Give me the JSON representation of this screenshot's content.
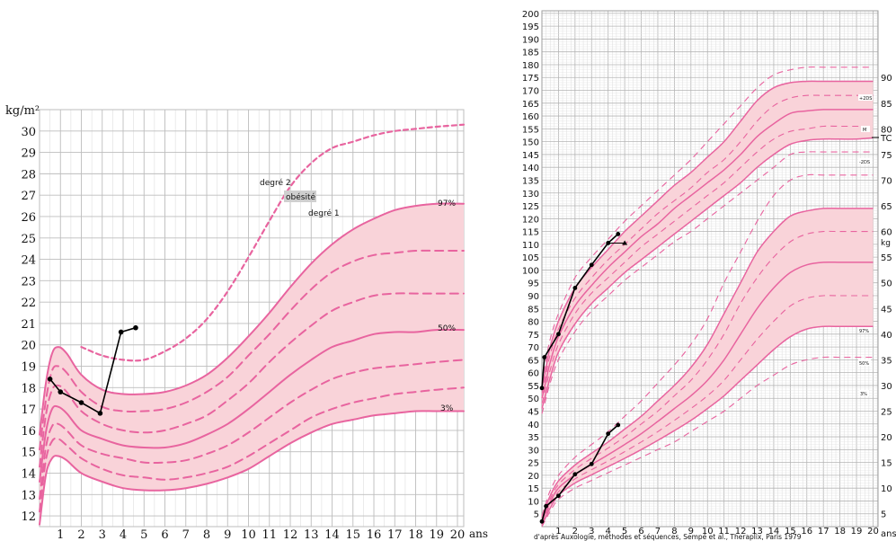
{
  "colors": {
    "pink": "#e8649f",
    "band": "#f9d3d9",
    "grid": "#c8c8c8",
    "line": "#000000"
  },
  "chart_data": [
    {
      "type": "line",
      "ylabel": "kg/m²",
      "xlabel": "ans",
      "xlim": [
        0,
        20.3
      ],
      "ylim": [
        11.5,
        31
      ],
      "x_ticks": [
        1,
        2,
        3,
        4,
        5,
        6,
        7,
        8,
        9,
        10,
        11,
        12,
        13,
        14,
        15,
        16,
        17,
        18,
        19,
        20
      ],
      "y_ticks": [
        12,
        13,
        14,
        15,
        16,
        17,
        18,
        19,
        20,
        21,
        22,
        23,
        24,
        25,
        26,
        27,
        28,
        29,
        30
      ],
      "percentile_labels": [
        "97%",
        "50%",
        "3%"
      ],
      "annotations": {
        "deg2": "degré 2",
        "obesity": "obésité",
        "deg1": "degré 1"
      },
      "shaded_band": {
        "upper": "97%",
        "lower": "3%"
      },
      "series": [
        {
          "style": "solid",
          "x": [
            0,
            0.3,
            0.6,
            0.9,
            1.3,
            2,
            3,
            4,
            5,
            6,
            7,
            8,
            9,
            10,
            11,
            12,
            13,
            14,
            15,
            16,
            17,
            18,
            19,
            20.3
          ],
          "y": [
            15.8,
            18.2,
            19.6,
            19.9,
            19.6,
            18.6,
            17.9,
            17.7,
            17.7,
            17.8,
            18.1,
            18.6,
            19.4,
            20.4,
            21.5,
            22.7,
            23.8,
            24.7,
            25.4,
            25.9,
            26.3,
            26.5,
            26.6,
            26.6
          ]
        },
        {
          "style": "dashed",
          "x": [
            0,
            0.3,
            0.6,
            0.9,
            1.3,
            2,
            3,
            4,
            5,
            6,
            7,
            8,
            9,
            10,
            11,
            12,
            13,
            14,
            15,
            16,
            17,
            18,
            19,
            20.3
          ],
          "y": [
            15.1,
            17.4,
            18.8,
            19.0,
            18.7,
            17.8,
            17.1,
            16.9,
            16.9,
            17.0,
            17.3,
            17.8,
            18.5,
            19.5,
            20.5,
            21.6,
            22.6,
            23.4,
            23.9,
            24.2,
            24.3,
            24.4,
            24.4,
            24.4
          ]
        },
        {
          "style": "dashed",
          "x": [
            0,
            0.3,
            0.6,
            0.9,
            1.3,
            2,
            3,
            4,
            5,
            6,
            7,
            8,
            9,
            10,
            11,
            12,
            13,
            14,
            15,
            16,
            17,
            18,
            19,
            20.3
          ],
          "y": [
            14.3,
            16.7,
            17.9,
            18.1,
            17.8,
            16.9,
            16.3,
            16.0,
            15.9,
            16.0,
            16.3,
            16.7,
            17.4,
            18.2,
            19.2,
            20.1,
            20.9,
            21.6,
            22.0,
            22.3,
            22.4,
            22.4,
            22.4,
            22.4
          ]
        },
        {
          "style": "solid",
          "x": [
            0,
            0.3,
            0.6,
            0.9,
            1.3,
            2,
            3,
            4,
            5,
            6,
            7,
            8,
            9,
            10,
            11,
            12,
            13,
            14,
            15,
            16,
            17,
            18,
            19,
            20.3
          ],
          "y": [
            13.6,
            15.9,
            17.0,
            17.1,
            16.8,
            16.0,
            15.6,
            15.3,
            15.2,
            15.2,
            15.4,
            15.8,
            16.3,
            17.0,
            17.8,
            18.6,
            19.3,
            19.9,
            20.2,
            20.5,
            20.6,
            20.6,
            20.7,
            20.7
          ]
        },
        {
          "style": "dashed",
          "x": [
            0,
            0.3,
            0.6,
            0.9,
            1.3,
            2,
            3,
            4,
            5,
            6,
            7,
            8,
            9,
            10,
            11,
            12,
            13,
            14,
            15,
            16,
            17,
            18,
            19,
            20.3
          ],
          "y": [
            12.8,
            15.2,
            16.2,
            16.3,
            16.0,
            15.3,
            14.9,
            14.7,
            14.5,
            14.5,
            14.6,
            14.9,
            15.3,
            15.9,
            16.6,
            17.3,
            17.9,
            18.4,
            18.7,
            18.9,
            19.0,
            19.1,
            19.2,
            19.3
          ]
        },
        {
          "style": "dashed",
          "x": [
            0,
            0.3,
            0.6,
            0.9,
            1.3,
            2,
            3,
            4,
            5,
            6,
            7,
            8,
            9,
            10,
            11,
            12,
            13,
            14,
            15,
            16,
            17,
            18,
            19,
            20.3
          ],
          "y": [
            12.2,
            14.6,
            15.5,
            15.6,
            15.3,
            14.7,
            14.2,
            13.9,
            13.8,
            13.7,
            13.8,
            14.0,
            14.3,
            14.8,
            15.4,
            16.0,
            16.6,
            17.0,
            17.3,
            17.5,
            17.7,
            17.8,
            17.9,
            18.0
          ]
        },
        {
          "style": "solid",
          "x": [
            0,
            0.3,
            0.6,
            0.9,
            1.3,
            2,
            3,
            4,
            5,
            6,
            7,
            8,
            9,
            10,
            11,
            12,
            13,
            14,
            15,
            16,
            17,
            18,
            19,
            20.3
          ],
          "y": [
            11.6,
            13.9,
            14.7,
            14.8,
            14.6,
            14.0,
            13.6,
            13.3,
            13.2,
            13.2,
            13.3,
            13.5,
            13.8,
            14.2,
            14.8,
            15.4,
            15.9,
            16.3,
            16.5,
            16.7,
            16.8,
            16.9,
            16.9,
            16.9
          ]
        },
        {
          "style": "obesity",
          "x": [
            2,
            3,
            4,
            5,
            6,
            7,
            8,
            9,
            10,
            11,
            12,
            13,
            14,
            15,
            16,
            17,
            18,
            19,
            20.3
          ],
          "y": [
            19.9,
            19.5,
            19.3,
            19.3,
            19.7,
            20.3,
            21.2,
            22.5,
            24.1,
            25.8,
            27.4,
            28.5,
            29.2,
            29.5,
            29.8,
            30.0,
            30.1,
            30.2,
            30.3
          ]
        },
        {
          "style": "patient",
          "x": [
            0.5,
            1.0,
            2.0,
            2.9,
            3.9,
            4.6
          ],
          "y": [
            18.4,
            17.8,
            17.3,
            16.8,
            20.6,
            20.8
          ]
        }
      ]
    },
    {
      "type": "line",
      "xlabel": "ans",
      "xlim": [
        0,
        20.3
      ],
      "height_ticks": [
        5,
        10,
        15,
        20,
        25,
        30,
        35,
        40,
        45,
        50,
        55,
        60,
        65,
        70,
        75,
        80,
        85,
        90,
        95,
        100,
        105,
        110,
        115,
        120,
        125,
        130,
        135,
        140,
        145,
        150,
        155,
        160,
        165,
        170,
        175,
        180,
        185,
        190,
        195,
        200
      ],
      "height_range": [
        0,
        201
      ],
      "weight_label": "kg",
      "weight_ticks": [
        5,
        10,
        15,
        20,
        25,
        30,
        35,
        40,
        45,
        50,
        55,
        60,
        65,
        70,
        75,
        80,
        85,
        90
      ],
      "x_ticks": [
        1,
        2,
        3,
        4,
        5,
        6,
        7,
        8,
        9,
        10,
        11,
        12,
        13,
        14,
        15,
        16,
        17,
        18,
        19,
        20
      ],
      "height_labels": [
        "+2DS",
        "M",
        "-2DS"
      ],
      "weight_labels": [
        "97%",
        "50%",
        "3%"
      ],
      "tc_label": "TC",
      "source": "d'après Auxologie, méthodes et séquences, Sempé et al., Theraplix, Paris 1979",
      "height_series": {
        "x": [
          0,
          0.25,
          0.5,
          1,
          2,
          3,
          4,
          5,
          6,
          7,
          8,
          9,
          10,
          11,
          12,
          13,
          14,
          15,
          16,
          17,
          18,
          19,
          20
        ],
        "plus2": [
          54,
          62,
          70,
          80,
          93,
          101,
          108,
          115,
          121,
          127,
          133,
          138,
          144,
          150,
          158,
          166,
          171,
          173,
          173.5,
          173.5,
          173.5,
          173.5,
          173.5
        ],
        "plus1": [
          52,
          59.5,
          67,
          77,
          89,
          97,
          104,
          110,
          116,
          122,
          127,
          132,
          138,
          143,
          150,
          158,
          164,
          167,
          168,
          168,
          168,
          168,
          168
        ],
        "mean": [
          50,
          57,
          64,
          74,
          86,
          94,
          101,
          107,
          113,
          118,
          124,
          129,
          134,
          139,
          145,
          152,
          157,
          161,
          162,
          162.5,
          162.5,
          162.5,
          162.5
        ],
        "minus1": [
          48,
          54.5,
          61,
          71,
          83,
          91,
          97,
          103,
          109,
          114,
          119,
          124,
          129,
          134,
          140,
          146,
          151,
          154,
          155,
          156,
          156,
          156,
          156
        ],
        "minus2": [
          46,
          52,
          58,
          68,
          79,
          87,
          93,
          99,
          104,
          109,
          114,
          119,
          124,
          129,
          134,
          140,
          145,
          149,
          150.5,
          151,
          151,
          151,
          151.5
        ],
        "outer_hi": [
          56,
          65,
          73,
          83,
          97,
          105,
          112,
          119,
          125,
          131,
          137,
          143,
          150,
          157,
          164,
          171,
          176,
          178,
          179,
          179,
          179,
          179,
          179
        ],
        "outer_lo": [
          44,
          50,
          56,
          65,
          76,
          84,
          90,
          96,
          101,
          106,
          111,
          115,
          120,
          125,
          130,
          135,
          140,
          145,
          146,
          146,
          146,
          146,
          146
        ]
      },
      "weight_series": {
        "x": [
          0,
          0.25,
          0.5,
          1,
          2,
          3,
          4,
          5,
          6,
          7,
          8,
          9,
          10,
          11,
          12,
          13,
          14,
          15,
          16,
          17,
          18,
          19,
          20
        ],
        "p97": [
          4.2,
          6.5,
          8.5,
          11.4,
          14.5,
          16.8,
          19,
          21.5,
          24,
          27,
          30,
          33.5,
          38,
          44,
          50,
          56,
          60,
          63,
          64,
          64.5,
          64.5,
          64.5,
          64.5
        ],
        "p75": [
          3.8,
          6,
          7.9,
          10.7,
          13.6,
          15.8,
          17.8,
          20,
          22.5,
          25,
          28,
          31,
          35,
          40,
          46,
          51,
          55,
          58,
          59.5,
          60,
          60,
          60,
          60
        ],
        "p50": [
          3.4,
          5.5,
          7.3,
          10,
          12.6,
          14.6,
          16.5,
          18.5,
          20.6,
          23,
          25.5,
          28,
          31,
          35,
          40,
          45,
          49,
          52,
          53.5,
          54,
          54,
          54,
          54
        ],
        "p25": [
          3.1,
          5,
          6.7,
          9.3,
          11.8,
          13.6,
          15.3,
          17.1,
          19,
          21,
          23.2,
          25.5,
          28,
          31,
          35,
          39,
          42.5,
          45.5,
          47,
          47.5,
          47.5,
          47.5,
          47.5
        ],
        "p3": [
          2.8,
          4.5,
          6.1,
          8.6,
          11,
          12.6,
          14.2,
          15.8,
          17.5,
          19.3,
          21.2,
          23.2,
          25.5,
          28,
          31,
          34,
          37,
          39.5,
          41,
          41.5,
          41.5,
          41.5,
          41.5
        ],
        "outer_hi": [
          4.6,
          7.2,
          9.5,
          12.5,
          16,
          18.5,
          21,
          24,
          27,
          30.5,
          34,
          38,
          43,
          50,
          56,
          62,
          67,
          70,
          71,
          71,
          71,
          71,
          71
        ],
        "outer_lo": [
          2.5,
          4,
          5.5,
          7.8,
          10,
          11.5,
          13,
          14.5,
          16,
          17.5,
          19,
          21,
          23,
          25,
          27.5,
          30,
          32,
          34,
          35,
          35.5,
          35.5,
          35.5,
          35.5
        ]
      },
      "height_patient": {
        "x": [
          0,
          0.15,
          1.0,
          2.0,
          3.0,
          4.0,
          4.6
        ],
        "y": [
          54,
          66,
          75,
          93,
          102,
          110.5,
          114
        ]
      },
      "height_target": {
        "x": [
          4.0,
          5.0
        ],
        "y": [
          110.5,
          110.5
        ]
      },
      "weight_patient": {
        "x": [
          0,
          0.25,
          1.0,
          2.0,
          3.0,
          4.0,
          4.6
        ],
        "y": [
          3.5,
          6.5,
          8.5,
          12.7,
          14.7,
          20.6,
          22.3
        ]
      }
    }
  ]
}
